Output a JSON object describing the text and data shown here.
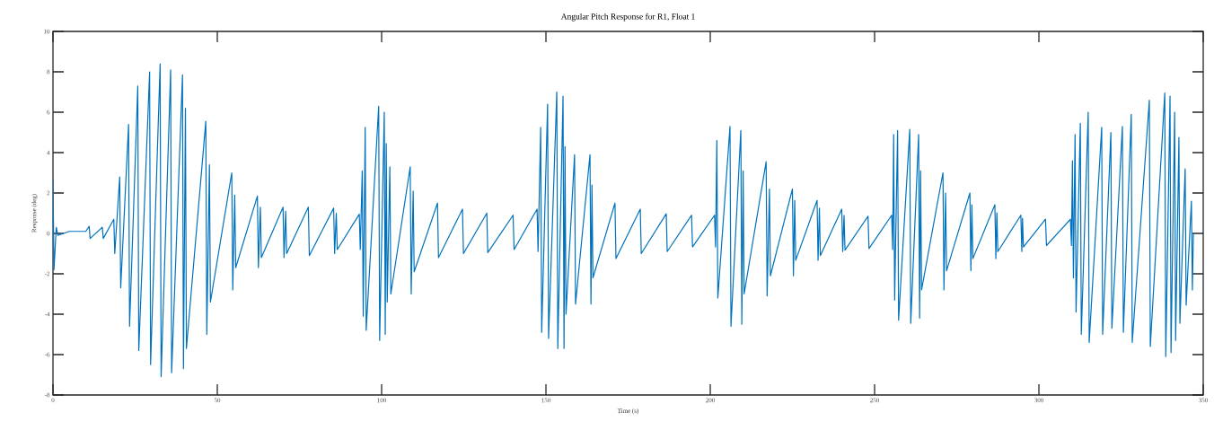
{
  "chart_data": {
    "type": "line",
    "title": "Angular Pitch Response for R1, Float 1",
    "xlabel": "Time (s)",
    "ylabel": "Response (deg)",
    "color": "#0072bd",
    "line_style": "solid",
    "xlim": [
      0,
      350
    ],
    "ylim": [
      -8,
      10
    ],
    "xticks": [
      0,
      50,
      100,
      150,
      200,
      250,
      300,
      350
    ],
    "yticks": [
      -8,
      -6,
      -4,
      -2,
      0,
      2,
      4,
      6,
      8,
      10
    ],
    "x": [
      0,
      0.3,
      1,
      1.5,
      5,
      10,
      11,
      11.3,
      15,
      15.3,
      18.5,
      18.8,
      20.3,
      20.6,
      23,
      23.3,
      25.8,
      26.1,
      29.4,
      29.7,
      32.6,
      32.9,
      35.8,
      36.1,
      39.4,
      39.7,
      40.3,
      40.6,
      46.5,
      46.8,
      47.6,
      47.9,
      54.4,
      54.7,
      55.3,
      55.6,
      62.2,
      62.5,
      63.1,
      63.4,
      70,
      70.3,
      70.8,
      71.1,
      77.7,
      78,
      85.4,
      85.7,
      86.2,
      86.5,
      93.2,
      93.5,
      94.1,
      94.4,
      95,
      95.3,
      99.1,
      99.4,
      100.8,
      101.1,
      101.4,
      101.7,
      102.5,
      102.8,
      108.7,
      109,
      109.6,
      109.9,
      117,
      117.3,
      124.6,
      124.9,
      132,
      132.3,
      140,
      140.3,
      147.3,
      147.6,
      148.4,
      148.7,
      150.5,
      150.8,
      153.3,
      153.6,
      155.2,
      155.5,
      155.8,
      156.1,
      158.7,
      159,
      163.4,
      163.7,
      164,
      164.3,
      171,
      171.3,
      178.7,
      179,
      186.6,
      186.9,
      194.3,
      194.6,
      201.3,
      201.6,
      202,
      202.3,
      206,
      206.3,
      209.3,
      209.6,
      210,
      210.3,
      217,
      217.3,
      218,
      218.3,
      225,
      225.3,
      225.7,
      226,
      232.5,
      232.8,
      233.2,
      233.5,
      240,
      240.3,
      240.7,
      241,
      248,
      248.3,
      255.2,
      255.5,
      255.8,
      256.1,
      257,
      257.3,
      260.7,
      261,
      263.4,
      263.7,
      264,
      264.3,
      270.8,
      271.1,
      271.6,
      271.9,
      279,
      279.3,
      279.6,
      279.9,
      286.6,
      286.9,
      287.2,
      287.5,
      294.5,
      294.8,
      295,
      295.3,
      302,
      302.3,
      309.6,
      309.9,
      310.2,
      310.5,
      311,
      311.3,
      312.6,
      312.9,
      315,
      315.3,
      319.1,
      319.4,
      321.9,
      322.2,
      325.4,
      325.7,
      328.1,
      328.4,
      333.6,
      333.9,
      338.3,
      338.6,
      339.9,
      340.2,
      341.3,
      341.6,
      342.6,
      342.9,
      344.5,
      344.8,
      346.4,
      346.7,
      347
    ],
    "values": [
      2.7,
      -1.8,
      0.3,
      -0.1,
      0.1,
      0.1,
      0.35,
      -0.25,
      0.3,
      -0.25,
      0.7,
      -1.0,
      2.8,
      -2.7,
      5.4,
      -4.6,
      7.3,
      -5.8,
      8.0,
      -6.5,
      8.4,
      -7.1,
      8.1,
      -6.9,
      7.85,
      -6.7,
      6.2,
      -5.7,
      5.55,
      -5.0,
      3.4,
      -3.4,
      3.0,
      -2.8,
      1.9,
      -1.7,
      1.85,
      -1.7,
      1.3,
      -1.2,
      1.3,
      -1.2,
      1.1,
      -1.0,
      1.3,
      -1.1,
      1.25,
      -1.0,
      1.0,
      -0.8,
      0.95,
      -0.8,
      3.1,
      -4.1,
      5.25,
      -4.8,
      6.3,
      -5.3,
      6.0,
      -5.0,
      4.45,
      -3.4,
      3.3,
      -3.0,
      3.3,
      -3.0,
      2.1,
      -1.9,
      1.5,
      -1.2,
      1.2,
      -1.0,
      1.0,
      -0.95,
      0.9,
      -0.8,
      1.2,
      -0.9,
      5.25,
      -4.9,
      6.4,
      -5.2,
      7.0,
      -5.7,
      6.8,
      -5.7,
      4.3,
      -4.0,
      3.9,
      -3.5,
      3.9,
      -3.5,
      2.4,
      -2.2,
      1.5,
      -1.25,
      1.2,
      -1.0,
      0.97,
      -0.9,
      0.9,
      -0.67,
      0.9,
      -0.67,
      4.6,
      -3.2,
      5.3,
      -4.6,
      5.1,
      -4.5,
      3.1,
      -3.0,
      3.55,
      -3.1,
      2.2,
      -2.1,
      2.2,
      -2.1,
      1.63,
      -1.33,
      1.63,
      -1.33,
      1.25,
      -1.1,
      1.2,
      -0.9,
      0.9,
      -0.83,
      0.85,
      -0.75,
      0.9,
      -0.8,
      4.9,
      -3.3,
      5.1,
      -4.3,
      5.15,
      -4.45,
      4.9,
      -4.2,
      3.1,
      -2.8,
      3.0,
      -2.8,
      2.0,
      -1.85,
      2.0,
      -1.85,
      1.42,
      -1.25,
      1.42,
      -1.25,
      1.02,
      -0.9,
      0.9,
      -0.9,
      0.75,
      -0.67,
      0.7,
      -0.6,
      0.7,
      -0.6,
      3.6,
      -2.2,
      4.9,
      -3.9,
      5.45,
      -5.0,
      6.0,
      -5.4,
      5.25,
      -5.0,
      5.0,
      -4.7,
      5.3,
      -4.9,
      5.9,
      -5.4,
      6.6,
      -5.6,
      6.95,
      -6.1,
      6.8,
      -5.9,
      6.0,
      -5.3,
      4.75,
      -4.45,
      3.2,
      -3.55,
      1.6,
      -2.8,
      0
    ]
  }
}
